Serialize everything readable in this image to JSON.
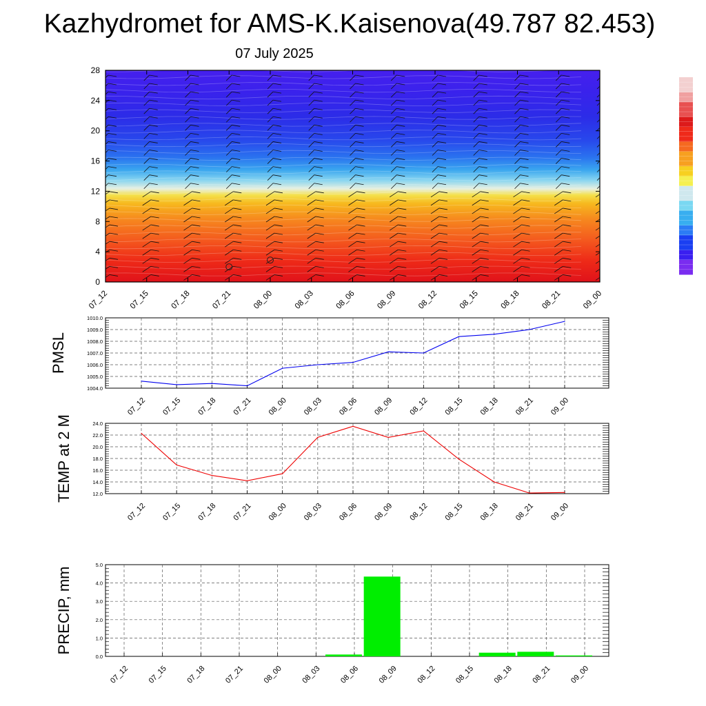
{
  "header": {
    "title": "Kazhydromet for AMS-K.Kaisenova(49.787 82.453)",
    "date": "07 July 2025"
  },
  "chart_data": [
    {
      "type": "heatmap",
      "name": "cross-section",
      "x_ticks": [
        "07_12",
        "07_15",
        "07_18",
        "07_21",
        "08_00",
        "08_03",
        "08_06",
        "08_09",
        "08_12",
        "08_15",
        "08_18",
        "08_21",
        "09_00"
      ],
      "y_ticks": [
        "0",
        "4",
        "8",
        "12",
        "16",
        "20",
        "24",
        "28"
      ],
      "ylim": [
        0,
        28
      ],
      "colorbar": [
        "#7a2cf0",
        "#3a1ff0",
        "#1a3ff2",
        "#2c7cf5",
        "#38aef0",
        "#7ad8f2",
        "#cfe8ee",
        "#f5f050",
        "#f7d020",
        "#f7a020",
        "#f56a20",
        "#ef2a1a",
        "#dd1a1a",
        "#e85050",
        "#f0a0a0",
        "#f3d0d0"
      ],
      "grid": false,
      "markers": [
        {
          "label": "circle",
          "x_index": 3.0,
          "y": 2.0
        },
        {
          "label": "circle",
          "x_index": 4.0,
          "y": 2.9
        }
      ]
    },
    {
      "type": "line",
      "name": "PMSL",
      "ylabel": "PMSL",
      "categories": [
        "07_12",
        "07_15",
        "07_18",
        "07_21",
        "08_00",
        "08_03",
        "08_06",
        "08_09",
        "08_12",
        "08_15",
        "08_18",
        "08_21",
        "09_00"
      ],
      "values": [
        1004.6,
        1004.3,
        1004.4,
        1004.2,
        1005.7,
        1006.0,
        1006.2,
        1007.1,
        1007.0,
        1008.4,
        1008.6,
        1009.0,
        1009.7
      ],
      "ylim": [
        1004.0,
        1010.0
      ],
      "y_ticks": [
        "1004.0",
        "1005.0",
        "1006.0",
        "1007.0",
        "1008.0",
        "1009.0",
        "1010.0"
      ],
      "color": "#0000ee",
      "grid": true
    },
    {
      "type": "line",
      "name": "TEMP",
      "ylabel": "TEMP at 2 M",
      "categories": [
        "07_12",
        "07_15",
        "07_18",
        "07_21",
        "08_00",
        "08_03",
        "08_06",
        "08_09",
        "08_12",
        "08_15",
        "08_18",
        "08_21",
        "09_00"
      ],
      "values": [
        22.3,
        16.9,
        15.1,
        14.2,
        15.4,
        21.6,
        23.5,
        21.6,
        22.7,
        17.9,
        14.0,
        12.1,
        12.2
      ],
      "ylim": [
        12.0,
        24.0
      ],
      "y_ticks": [
        "12.0",
        "14.0",
        "16.0",
        "18.0",
        "20.0",
        "22.0",
        "24.0"
      ],
      "color": "#ee0000",
      "grid": true
    },
    {
      "type": "bar",
      "name": "PRECIP",
      "ylabel": "PRECIP, mm",
      "categories": [
        "07_12",
        "07_15",
        "07_18",
        "07_21",
        "08_00",
        "08_03",
        "08_06",
        "08_09",
        "08_12",
        "08_15",
        "08_18",
        "08_21",
        "09_00"
      ],
      "values": [
        0.0,
        0.0,
        0.0,
        0.0,
        0.0,
        0.0,
        0.1,
        4.35,
        0.0,
        0.0,
        0.2,
        0.25,
        0.05
      ],
      "ylim": [
        0.0,
        5.0
      ],
      "y_ticks": [
        "0.0",
        "1.0",
        "2.0",
        "3.0",
        "4.0",
        "5.0"
      ],
      "color": "#00ee00",
      "grid": true
    }
  ]
}
